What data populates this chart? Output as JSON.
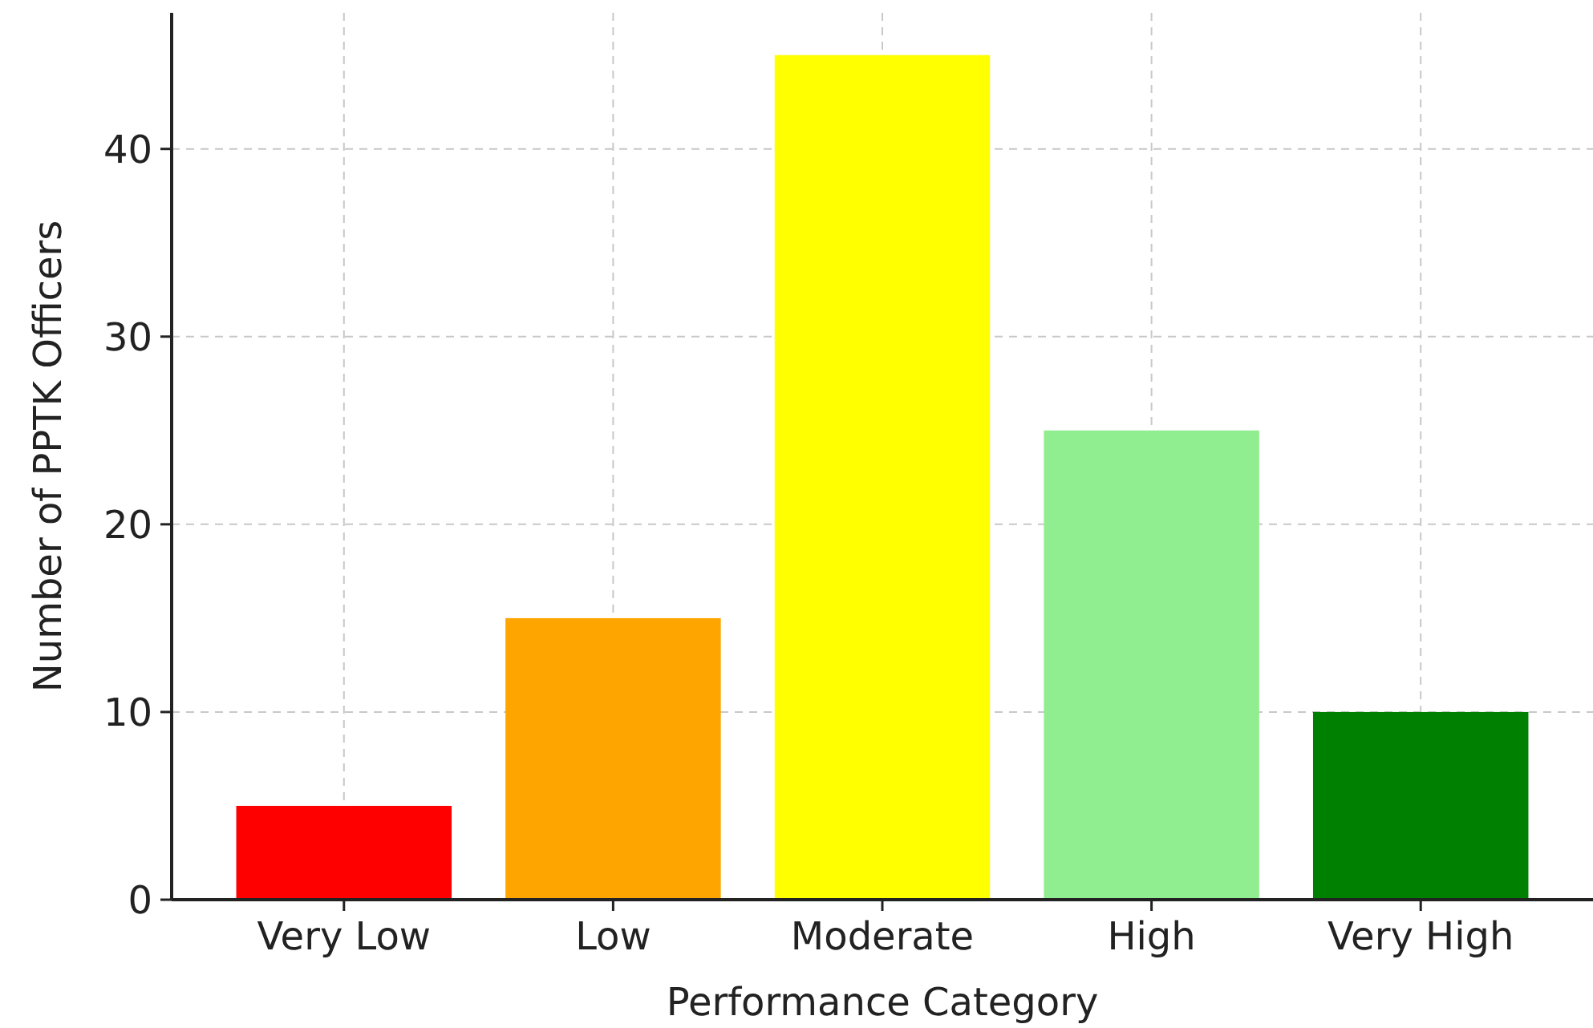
{
  "chart_data": {
    "type": "bar",
    "xlabel": "Performance Category",
    "ylabel": "Number of PPTK Officers",
    "categories": [
      "Very Low",
      "Low",
      "Moderate",
      "High",
      "Very High"
    ],
    "values": [
      5,
      15,
      45,
      25,
      10
    ],
    "colors": [
      "#ff0000",
      "#ffa500",
      "#ffff00",
      "#90ee90",
      "#008000"
    ],
    "ylim": [
      0,
      47.25
    ],
    "yticks": [
      0,
      10,
      20,
      30,
      40
    ],
    "grid": true
  }
}
